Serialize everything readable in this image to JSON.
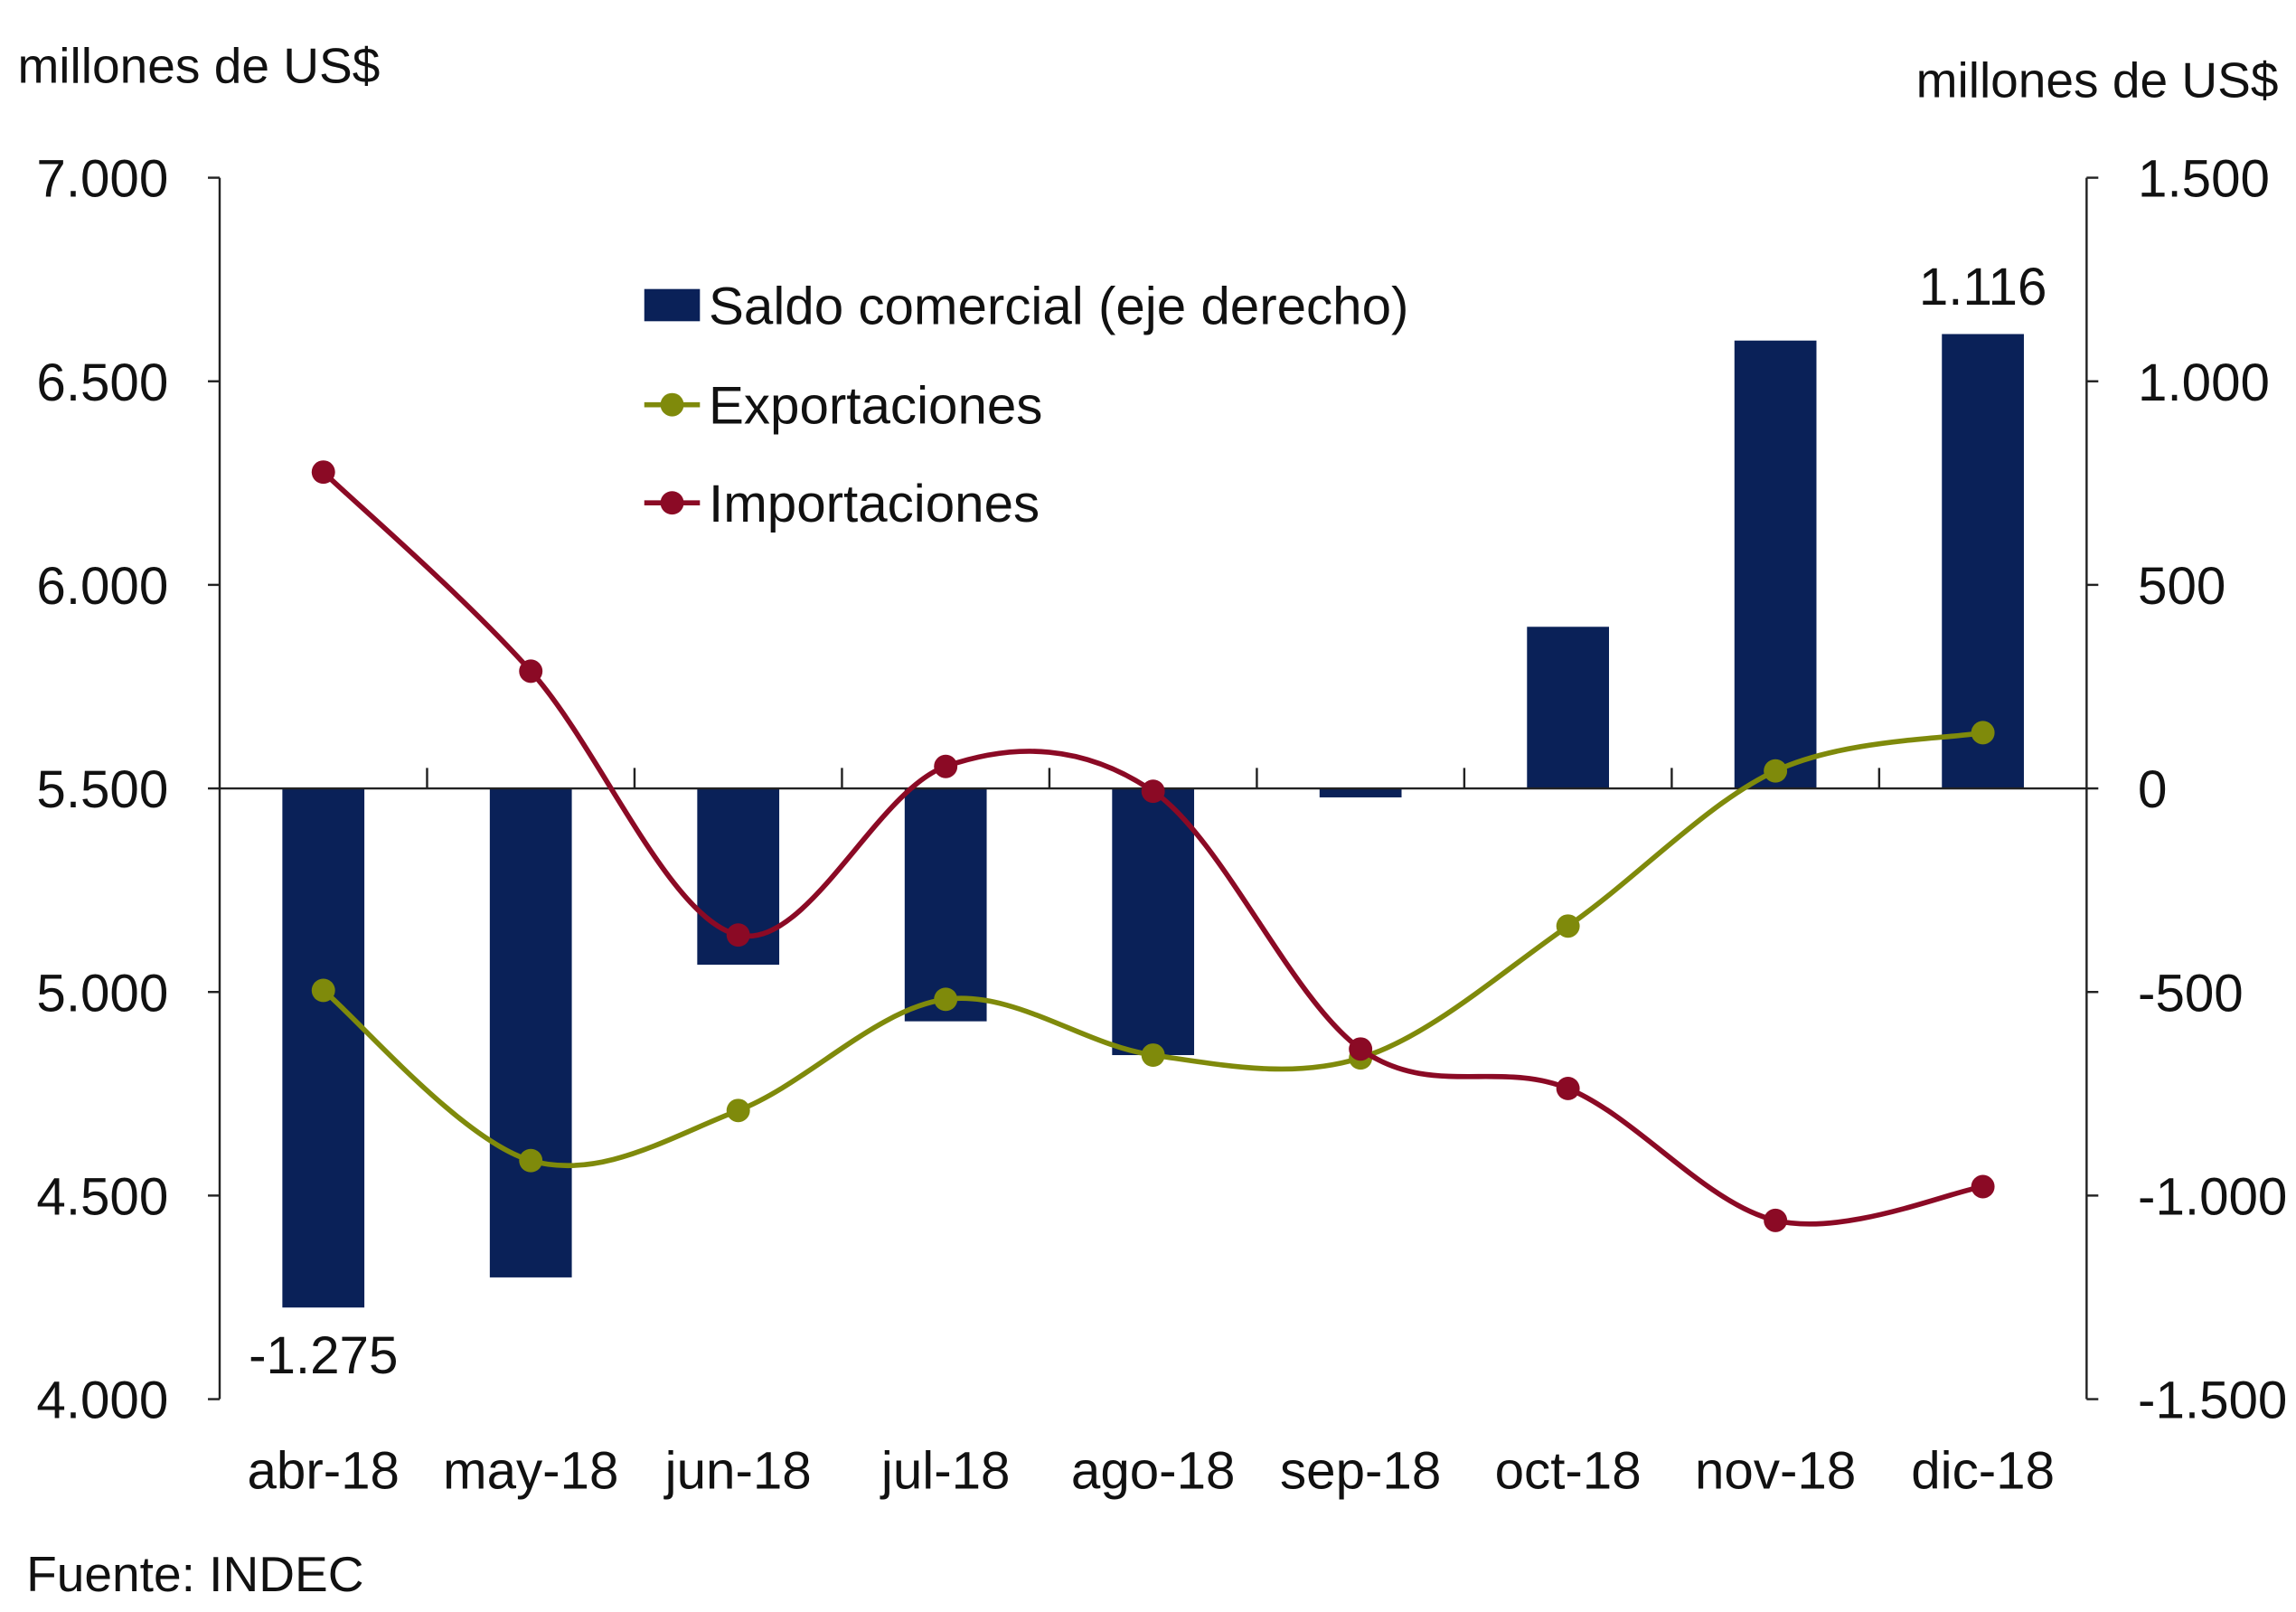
{
  "chart_data": {
    "type": "bar+line",
    "categories": [
      "abr-18",
      "may-18",
      "jun-18",
      "jul-18",
      "ago-18",
      "sep-18",
      "oct-18",
      "nov-18",
      "dic-18"
    ],
    "left_axis": {
      "label": "millones de US$",
      "ylim": [
        4000,
        7000
      ],
      "ticks": [
        "4.000",
        "4.500",
        "5.000",
        "5.500",
        "6.000",
        "6.500",
        "7.000"
      ],
      "tick_values": [
        4000,
        4500,
        5000,
        5500,
        6000,
        6500,
        7000
      ]
    },
    "right_axis": {
      "label": "millones de US$",
      "ylim": [
        -1500,
        1500
      ],
      "ticks": [
        "-1.500",
        "-1.000",
        "-500",
        "0",
        "500",
        "1.000",
        "1.500"
      ],
      "tick_values": [
        -1500,
        -1000,
        -500,
        0,
        500,
        1000,
        1500
      ]
    },
    "series": [
      {
        "name": "Saldo comercial (eje derecho)",
        "kind": "bar",
        "axis": "right",
        "color": "#0a2158",
        "values": [
          -1275,
          -1201,
          -433,
          -572,
          -655,
          -22,
          397,
          1100,
          1116
        ]
      },
      {
        "name": "Exportaciones",
        "kind": "line",
        "axis": "left",
        "color": "#7f8a0b",
        "values": [
          5004,
          4586,
          4709,
          4982,
          4845,
          4838,
          5162,
          5543,
          5637
        ]
      },
      {
        "name": "Importaciones",
        "kind": "line",
        "axis": "left",
        "color": "#8b0a25",
        "values": [
          6277,
          5788,
          5140,
          5554,
          5493,
          4860,
          4763,
          4439,
          4522
        ]
      }
    ],
    "data_labels": [
      {
        "category": "abr-18",
        "text": "-1.275"
      },
      {
        "category": "dic-18",
        "text": "1.116"
      }
    ],
    "legend_placement": "top-center",
    "grid": false,
    "source": "Fuente: INDEC"
  }
}
